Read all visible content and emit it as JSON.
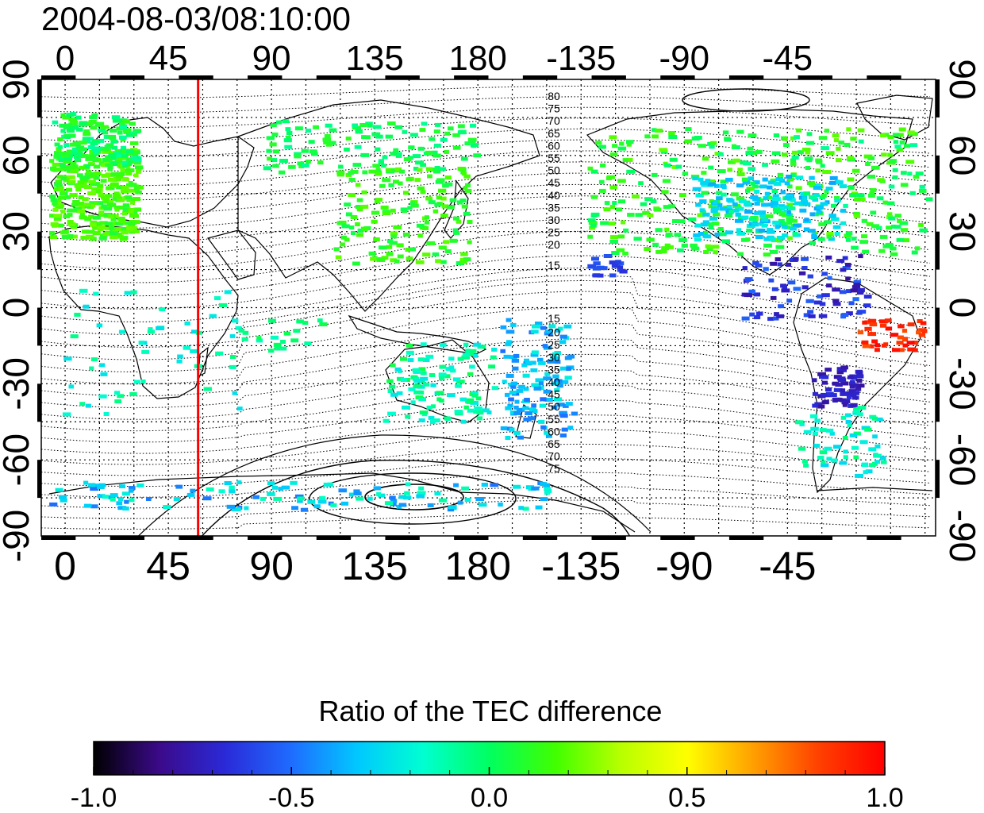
{
  "title": "2004-08-03/08:10:00",
  "map": {
    "type": "world-map",
    "lon_labels": [
      "0",
      "45",
      "90",
      "135",
      "180",
      "-135",
      "-90",
      "-45"
    ],
    "lat_labels": [
      "90",
      "60",
      "30",
      "0",
      "-30",
      "-60",
      "-90"
    ],
    "contour_labels_north": [
      "80",
      "75",
      "70",
      "65",
      "60",
      "55",
      "50",
      "45",
      "40",
      "35",
      "30",
      "25",
      "20",
      "15"
    ],
    "contour_labels_south": [
      "15",
      "20",
      "25",
      "30",
      "35",
      "40",
      "45",
      "50",
      "55",
      "60",
      "65",
      "70",
      "75"
    ],
    "meridian_marker": {
      "longitude": 58,
      "color": "#ff0000"
    },
    "grid": true,
    "coastlines": true
  },
  "colorbar": {
    "title": "Ratio of the TEC difference",
    "ticks": [
      "-1.0",
      "-0.5",
      "0.0",
      "0.5",
      "1.0"
    ],
    "range": [
      -1.0,
      1.0
    ],
    "colormap": [
      "#000000",
      "#3b0a8a",
      "#2a2ad8",
      "#1f6cff",
      "#00c8ff",
      "#00ffd0",
      "#00ff60",
      "#40ff00",
      "#b8ff00",
      "#ffff00",
      "#ffa000",
      "#ff4000",
      "#ff0000"
    ]
  }
}
